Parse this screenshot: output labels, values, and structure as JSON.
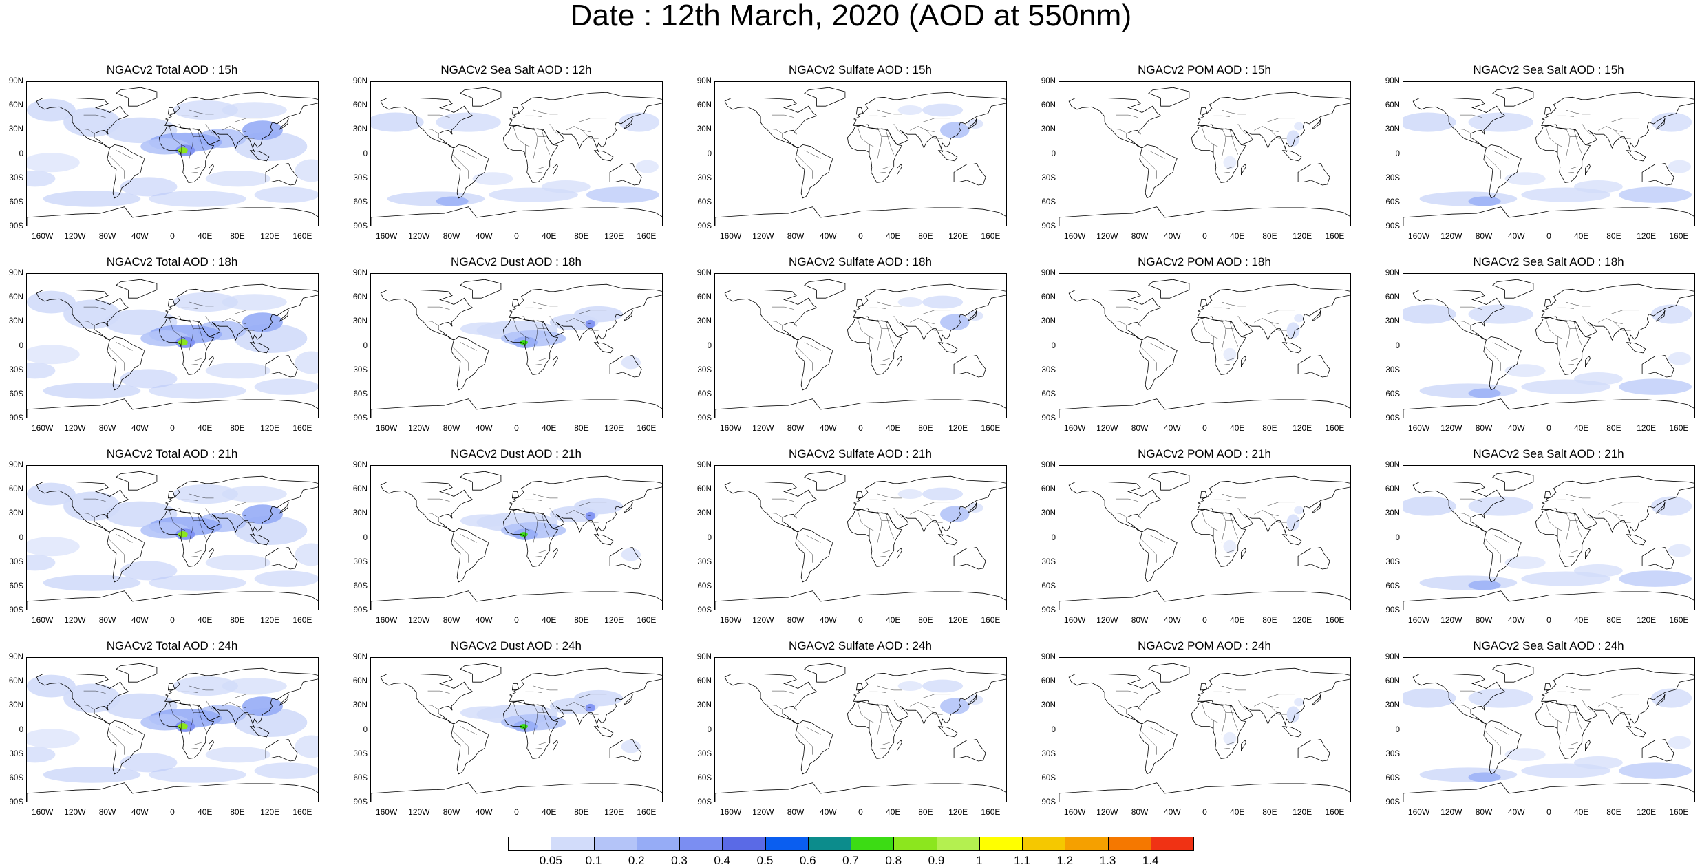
{
  "page": {
    "title": "Date : 12th March, 2020 (AOD at 550nm)"
  },
  "axes": {
    "lat_labels": [
      "90N",
      "60N",
      "30N",
      "0",
      "30S",
      "60S",
      "90S"
    ],
    "lon_labels": [
      "160W",
      "120W",
      "80W",
      "40W",
      "0",
      "40E",
      "80E",
      "120E",
      "160E"
    ]
  },
  "panel_titles": [
    [
      "NGACv2 Total AOD : 15h",
      "NGACv2 Sea Salt  AOD : 12h",
      "NGACv2 Sulfate AOD : 15h",
      "NGACv2 POM AOD : 15h",
      "NGACv2 Sea Salt AOD : 15h"
    ],
    [
      "NGACv2 Total AOD : 18h",
      "NGACv2 Dust AOD : 18h",
      "NGACv2 Sulfate AOD : 18h",
      "NGACv2 POM AOD : 18h",
      "NGACv2 Sea Salt AOD : 18h"
    ],
    [
      "NGACv2 Total AOD : 21h",
      "NGACv2 Dust AOD : 21h",
      "NGACv2 Sulfate AOD : 21h",
      "NGACv2 POM AOD : 21h",
      "NGACv2 Sea Salt AOD : 21h"
    ],
    [
      "NGACv2 Total AOD : 24h",
      "NGACv2 Dust AOD : 24h",
      "NGACv2 Sulfate AOD : 24h",
      "NGACv2 POM AOD : 24h",
      "NGACv2 Sea Salt  AOD : 24h"
    ]
  ],
  "colorbar": {
    "labels": [
      "0.05",
      "0.1",
      "0.2",
      "0.3",
      "0.4",
      "0.5",
      "0.6",
      "0.7",
      "0.8",
      "0.9",
      "1",
      "1.1",
      "1.2",
      "1.3",
      "1.4"
    ],
    "colors": [
      "#ffffff",
      "#d2dcfa",
      "#b4c4f8",
      "#96acf6",
      "#7b8ef2",
      "#5a6ae6",
      "#0a5ef0",
      "#0c8c8c",
      "#3cdc14",
      "#8ce61e",
      "#b4f050",
      "#ffff00",
      "#f5c800",
      "#f5a000",
      "#f57800",
      "#f03214"
    ]
  }
}
